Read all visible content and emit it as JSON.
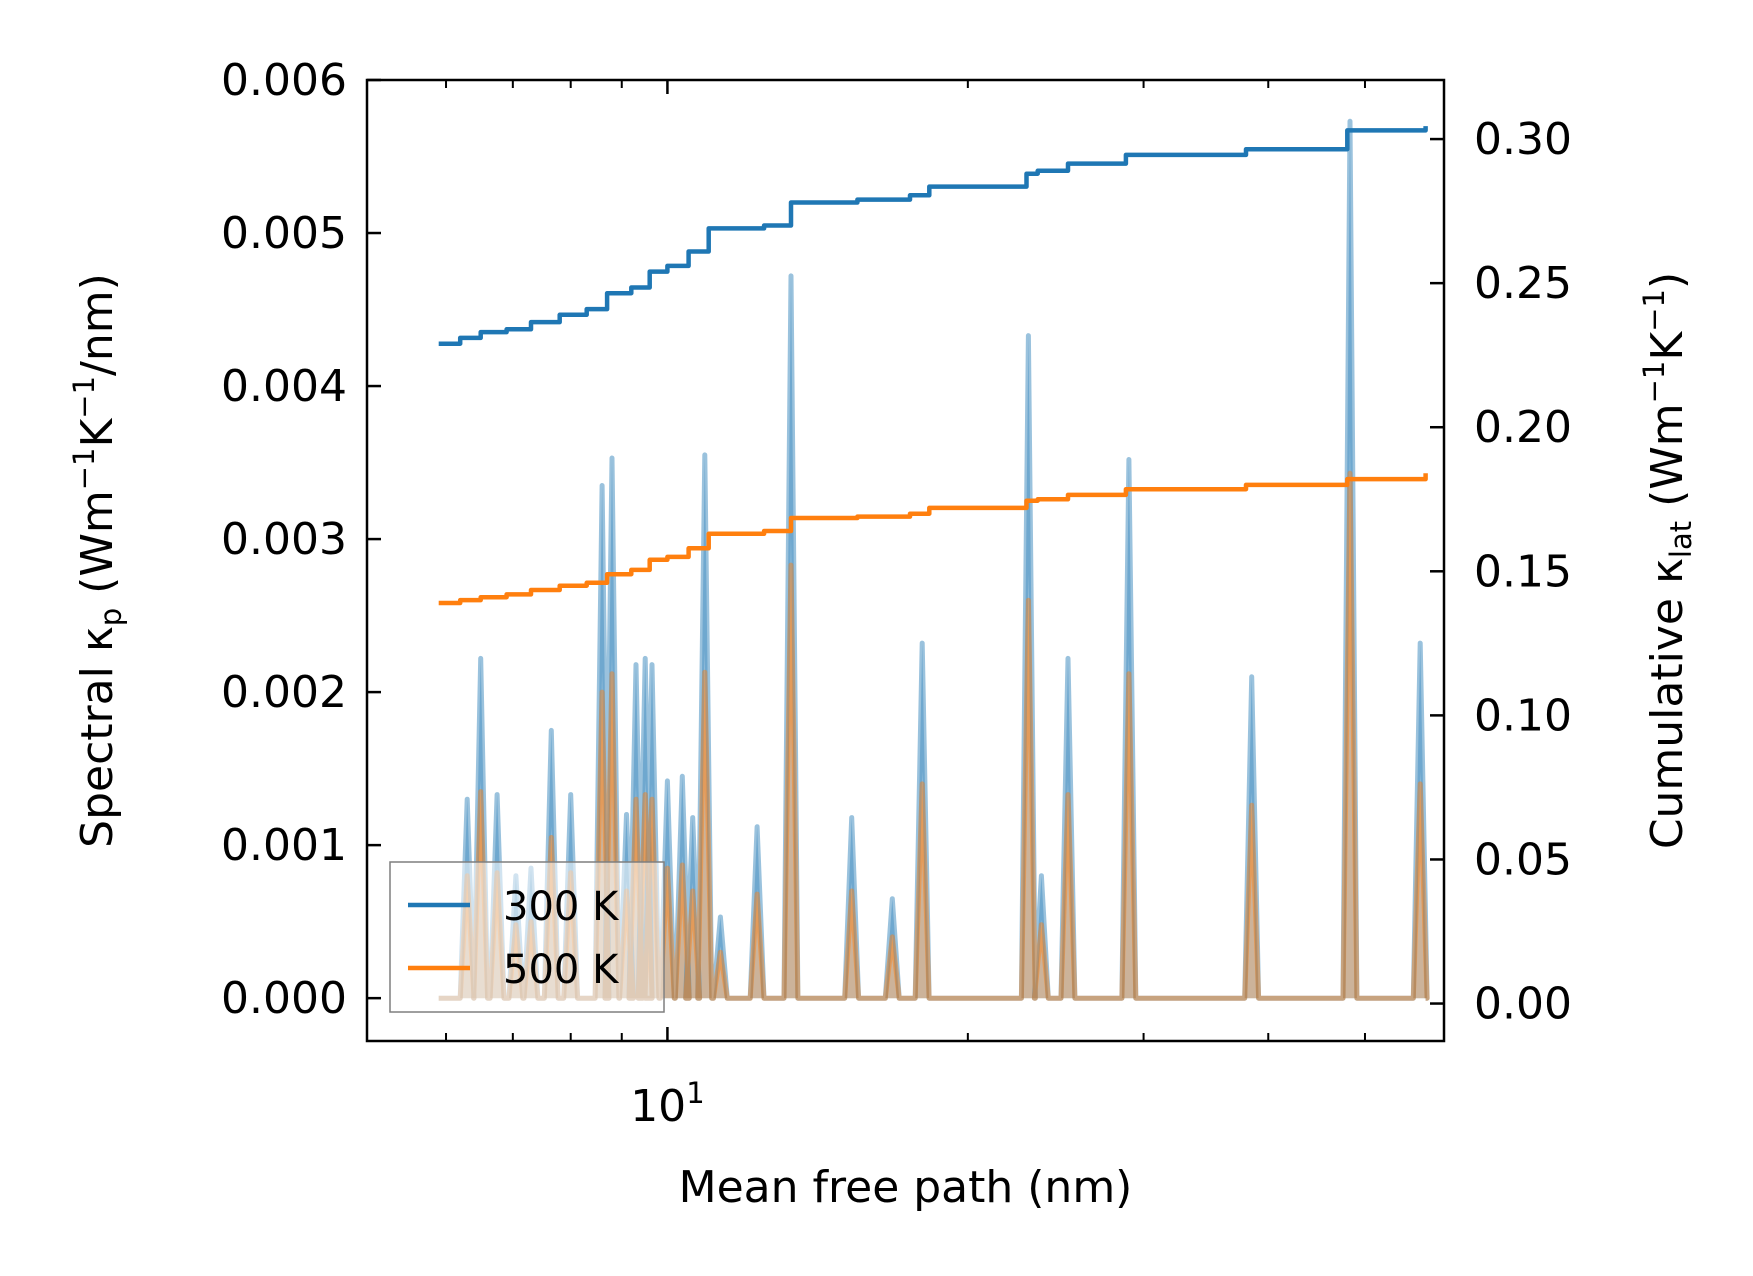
{
  "chart_data": {
    "type": "line",
    "xlabel": "Mean free path (nm)",
    "ylabel": "Spectral κp (Wm⁻¹K⁻¹/nm)",
    "ylabel_parts": {
      "prefix": "Spectral κ",
      "sub": "p",
      "unit_open": " (Wm",
      "e1": "−1",
      "mid": "K",
      "e2": "−1",
      "unit_close": "/nm)"
    },
    "y2label": "Cumulative κlat (Wm⁻¹K⁻¹)",
    "y2label_parts": {
      "prefix": "Cumulative κ",
      "sub": "lat",
      "unit_open": " (Wm",
      "e1": "−1",
      "mid": "K",
      "e2": "−1",
      "unit_close": ")"
    },
    "x_scale": "log",
    "xlim": [
      5.0,
      60.0
    ],
    "ylim": [
      -0.00028,
      0.006
    ],
    "y2lim": [
      -0.013,
      0.3205
    ],
    "x_tick_labels": [
      {
        "value": 10,
        "base": "10",
        "exp": "1"
      }
    ],
    "y_ticks": [
      0.0,
      0.001,
      0.002,
      0.003,
      0.004,
      0.005,
      0.006
    ],
    "y_tick_labels": [
      "0.000",
      "0.001",
      "0.002",
      "0.003",
      "0.004",
      "0.005",
      "0.006"
    ],
    "y2_ticks": [
      0.0,
      0.05,
      0.1,
      0.15,
      0.2,
      0.25,
      0.3
    ],
    "y2_tick_labels": [
      "0.00",
      "0.05",
      "0.10",
      "0.15",
      "0.20",
      "0.25",
      "0.30"
    ],
    "legend": {
      "location": "lower-left",
      "entries": [
        {
          "label": "300 K",
          "color": "#1f77b4"
        },
        {
          "label": "500 K",
          "color": "#ff7f0e"
        }
      ]
    },
    "spectral_peaks": [
      {
        "x": 6.3,
        "s300": 0.0013,
        "s500": 0.0008
      },
      {
        "x": 6.5,
        "s300": 0.00222,
        "s500": 0.00135
      },
      {
        "x": 6.75,
        "s300": 0.00133,
        "s500": 0.00082
      },
      {
        "x": 7.05,
        "s300": 0.0008,
        "s500": 0.00048
      },
      {
        "x": 7.3,
        "s300": 0.00085,
        "s500": 0.0005
      },
      {
        "x": 7.65,
        "s300": 0.00175,
        "s500": 0.00105
      },
      {
        "x": 8.0,
        "s300": 0.00133,
        "s500": 0.00082
      },
      {
        "x": 8.6,
        "s300": 0.00335,
        "s500": 0.002
      },
      {
        "x": 8.8,
        "s300": 0.00353,
        "s500": 0.00212
      },
      {
        "x": 9.1,
        "s300": 0.0012,
        "s500": 0.0007
      },
      {
        "x": 9.3,
        "s300": 0.00218,
        "s500": 0.0013
      },
      {
        "x": 9.5,
        "s300": 0.00222,
        "s500": 0.00133
      },
      {
        "x": 9.65,
        "s300": 0.00218,
        "s500": 0.0013
      },
      {
        "x": 10.0,
        "s300": 0.00142,
        "s500": 0.00085
      },
      {
        "x": 10.35,
        "s300": 0.00145,
        "s500": 0.00087
      },
      {
        "x": 10.6,
        "s300": 0.00118,
        "s500": 0.0007
      },
      {
        "x": 10.9,
        "s300": 0.00355,
        "s500": 0.00213
      },
      {
        "x": 11.3,
        "s300": 0.00053,
        "s500": 0.0003
      },
      {
        "x": 12.3,
        "s300": 0.00112,
        "s500": 0.00068
      },
      {
        "x": 13.3,
        "s300": 0.00472,
        "s500": 0.00283
      },
      {
        "x": 15.3,
        "s300": 0.00118,
        "s500": 0.0007
      },
      {
        "x": 16.8,
        "s300": 0.00065,
        "s500": 0.0004
      },
      {
        "x": 18.0,
        "s300": 0.00232,
        "s500": 0.0014
      },
      {
        "x": 23.0,
        "s300": 0.00433,
        "s500": 0.0026
      },
      {
        "x": 23.7,
        "s300": 0.0008,
        "s500": 0.00048
      },
      {
        "x": 25.2,
        "s300": 0.00222,
        "s500": 0.00133
      },
      {
        "x": 29.0,
        "s300": 0.00352,
        "s500": 0.00212
      },
      {
        "x": 38.5,
        "s300": 0.0021,
        "s500": 0.00126
      },
      {
        "x": 48.3,
        "s300": 0.00573,
        "s500": 0.00343
      },
      {
        "x": 56.8,
        "s300": 0.00232,
        "s500": 0.0014
      }
    ],
    "series": [
      {
        "name": "300 K",
        "color": "#1f77b4",
        "cumulative": [
          [
            5.9,
            0.229
          ],
          [
            6.2,
            0.231
          ],
          [
            6.5,
            0.233
          ],
          [
            6.9,
            0.234
          ],
          [
            7.3,
            0.2365
          ],
          [
            7.8,
            0.239
          ],
          [
            8.3,
            0.241
          ],
          [
            8.7,
            0.2465
          ],
          [
            9.2,
            0.2485
          ],
          [
            9.6,
            0.254
          ],
          [
            10.0,
            0.256
          ],
          [
            10.5,
            0.261
          ],
          [
            11.0,
            0.269
          ],
          [
            12.5,
            0.27
          ],
          [
            13.3,
            0.278
          ],
          [
            15.5,
            0.279
          ],
          [
            17.5,
            0.2805
          ],
          [
            18.3,
            0.2835
          ],
          [
            22.9,
            0.288
          ],
          [
            23.5,
            0.289
          ],
          [
            25.2,
            0.2915
          ],
          [
            28.8,
            0.2945
          ],
          [
            38.0,
            0.2965
          ],
          [
            48.0,
            0.303
          ],
          [
            57.5,
            0.3045
          ]
        ]
      },
      {
        "name": "500 K",
        "color": "#ff7f0e",
        "cumulative": [
          [
            5.9,
            0.139
          ],
          [
            6.2,
            0.14
          ],
          [
            6.5,
            0.141
          ],
          [
            6.9,
            0.142
          ],
          [
            7.3,
            0.1435
          ],
          [
            7.8,
            0.145
          ],
          [
            8.3,
            0.146
          ],
          [
            8.7,
            0.149
          ],
          [
            9.2,
            0.1505
          ],
          [
            9.6,
            0.154
          ],
          [
            10.0,
            0.155
          ],
          [
            10.5,
            0.158
          ],
          [
            11.0,
            0.163
          ],
          [
            12.5,
            0.164
          ],
          [
            13.3,
            0.1685
          ],
          [
            15.5,
            0.169
          ],
          [
            17.5,
            0.17
          ],
          [
            18.3,
            0.172
          ],
          [
            22.9,
            0.1745
          ],
          [
            23.5,
            0.175
          ],
          [
            25.2,
            0.1765
          ],
          [
            28.8,
            0.1785
          ],
          [
            38.0,
            0.18
          ],
          [
            48.0,
            0.182
          ],
          [
            57.5,
            0.184
          ]
        ]
      }
    ]
  }
}
